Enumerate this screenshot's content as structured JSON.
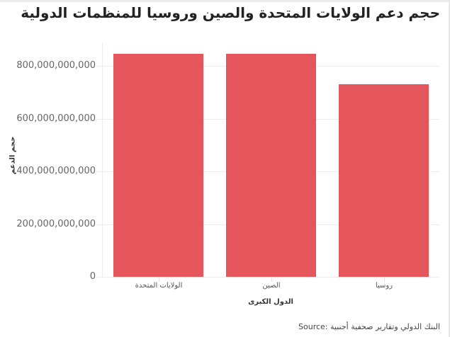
{
  "chart_data": {
    "type": "bar",
    "title": "حجم دعم الولايات المتحدة والصين وروسيا للمنظمات الدولية",
    "xlabel": "الدول الكبرى",
    "ylabel": "حجم الدعم",
    "categories": [
      "الولايات المتحدة",
      "الصين",
      "روسيا"
    ],
    "values": [
      846000000000,
      846000000000,
      730000000000
    ],
    "ylim": [
      0,
      890000000000
    ],
    "yticks": [
      0,
      200000000000,
      400000000000,
      600000000000,
      800000000000
    ],
    "ytick_labels": [
      "0",
      "200,000,000,000",
      "400,000,000,000",
      "600,000,000,000",
      "800,000,000,000"
    ],
    "grid": true,
    "bar_color": "#e4565c",
    "source": "Source: البنك الدولي وتقارير صحفية أجنبية"
  }
}
